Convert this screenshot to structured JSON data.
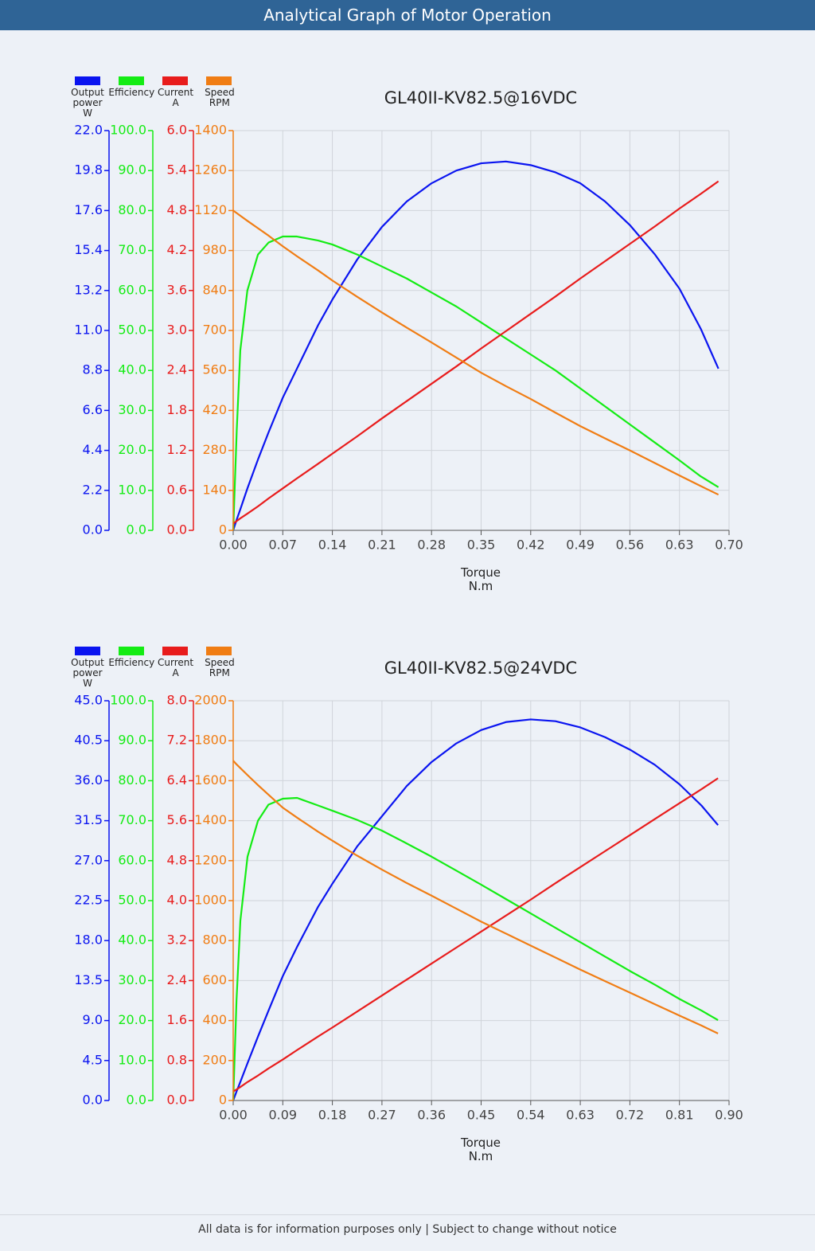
{
  "header": {
    "title": "Analytical Graph of Motor Operation"
  },
  "chart_data": [
    {
      "type": "line",
      "title": "GL40II-KV82.5@16VDC",
      "xlabel": "Torque\nN.m",
      "grid": true,
      "legend": "top-left",
      "x": [
        0,
        0.005,
        0.01,
        0.02,
        0.035,
        0.05,
        0.07,
        0.09,
        0.12,
        0.14,
        0.175,
        0.21,
        0.245,
        0.28,
        0.315,
        0.35,
        0.385,
        0.42,
        0.455,
        0.49,
        0.525,
        0.56,
        0.595,
        0.63,
        0.66,
        0.685
      ],
      "xlim": [
        0,
        0.7
      ],
      "xticks": [
        {
          "value": 0,
          "label": "0.00"
        },
        0.07,
        0.14,
        0.21,
        0.28,
        0.35,
        0.42,
        0.49,
        0.56,
        0.63,
        {
          "value": 0.7,
          "label": "0.70"
        }
      ],
      "series": [
        {
          "name": "Output\npower\nW",
          "color": "#0a14f0",
          "ylim": [
            0,
            22
          ],
          "yticks": [
            {
              "value": 0,
              "label": "0.0"
            },
            2.2,
            4.4,
            6.6,
            8.8,
            {
              "value": 11,
              "label": "11.0"
            },
            13.2,
            15.4,
            17.6,
            19.8,
            {
              "value": 22,
              "label": "22.0"
            }
          ],
          "values": [
            0,
            0.6,
            1.15,
            2.3,
            3.9,
            5.4,
            7.3,
            8.9,
            11.3,
            12.7,
            14.9,
            16.7,
            18.1,
            19.1,
            19.8,
            20.2,
            20.3,
            20.1,
            19.7,
            19.1,
            18.1,
            16.8,
            15.2,
            13.3,
            11.1,
            8.9
          ]
        },
        {
          "name": "Efficiency",
          "color": "#14ec14",
          "ylim": [
            0,
            100
          ],
          "yticks": [
            {
              "value": 0,
              "label": "0.0"
            },
            {
              "value": 10,
              "label": "10.0"
            },
            {
              "value": 20,
              "label": "20.0"
            },
            {
              "value": 30,
              "label": "30.0"
            },
            {
              "value": 40,
              "label": "40.0"
            },
            {
              "value": 50,
              "label": "50.0"
            },
            {
              "value": 60,
              "label": "60.0"
            },
            {
              "value": 70,
              "label": "70.0"
            },
            {
              "value": 80,
              "label": "80.0"
            },
            {
              "value": 90,
              "label": "90.0"
            },
            {
              "value": 100,
              "label": "100.0"
            }
          ],
          "values": [
            0,
            25,
            45,
            60,
            69,
            72,
            73.5,
            73.5,
            72.5,
            71.5,
            69,
            66,
            63,
            59.5,
            56,
            52,
            48,
            44,
            40,
            35.5,
            31,
            26.5,
            22,
            17.5,
            13.5,
            10.8
          ]
        },
        {
          "name": "Current\nA",
          "color": "#e81c1c",
          "ylim": [
            0,
            6
          ],
          "yticks": [
            {
              "value": 0,
              "label": "0.0"
            },
            0.6,
            1.2,
            1.8,
            2.4,
            {
              "value": 3,
              "label": "3.0"
            },
            3.6,
            4.2,
            4.8,
            5.4,
            {
              "value": 6,
              "label": "6.0"
            }
          ],
          "values": [
            0.1,
            0.14,
            0.18,
            0.25,
            0.36,
            0.48,
            0.63,
            0.78,
            1.0,
            1.15,
            1.41,
            1.68,
            1.94,
            2.2,
            2.46,
            2.73,
            2.99,
            3.25,
            3.51,
            3.78,
            4.04,
            4.3,
            4.56,
            4.83,
            5.05,
            5.24
          ]
        },
        {
          "name": "Speed\nRPM",
          "color": "#f07d14",
          "ylim": [
            0,
            1400
          ],
          "yticks": [
            0,
            140,
            280,
            420,
            560,
            700,
            840,
            980,
            1120,
            1260,
            1400
          ],
          "values": [
            1120,
            1111,
            1102,
            1084,
            1058,
            1032,
            995,
            960,
            910,
            875,
            818,
            763,
            710,
            658,
            605,
            552,
            505,
            460,
            412,
            365,
            322,
            280,
            236,
            192,
            155,
            125
          ]
        }
      ]
    },
    {
      "type": "line",
      "title": "GL40II-KV82.5@24VDC",
      "xlabel": "Torque\nN.m",
      "grid": true,
      "legend": "top-left",
      "x": [
        0,
        0.006,
        0.013,
        0.026,
        0.045,
        0.064,
        0.09,
        0.116,
        0.154,
        0.18,
        0.225,
        0.27,
        0.315,
        0.36,
        0.405,
        0.45,
        0.495,
        0.54,
        0.585,
        0.63,
        0.675,
        0.72,
        0.765,
        0.81,
        0.85,
        0.88
      ],
      "xlim": [
        0,
        0.9
      ],
      "xticks": [
        {
          "value": 0,
          "label": "0.00"
        },
        0.09,
        0.18,
        0.27,
        0.36,
        0.45,
        0.54,
        0.63,
        0.72,
        0.81,
        {
          "value": 0.9,
          "label": "0.90"
        }
      ],
      "series": [
        {
          "name": "Output\npower\nW",
          "color": "#0a14f0",
          "ylim": [
            0,
            45
          ],
          "yticks": [
            {
              "value": 0,
              "label": "0.0"
            },
            4.5,
            {
              "value": 9,
              "label": "9.0"
            },
            13.5,
            {
              "value": 18,
              "label": "18.0"
            },
            22.5,
            {
              "value": 27,
              "label": "27.0"
            },
            31.5,
            {
              "value": 36,
              "label": "36.0"
            },
            40.5,
            {
              "value": 45,
              "label": "45.0"
            }
          ],
          "values": [
            0,
            1.0,
            2.1,
            4.2,
            7.2,
            10.1,
            14.0,
            17.3,
            21.8,
            24.4,
            28.6,
            32.0,
            35.4,
            38.1,
            40.2,
            41.7,
            42.6,
            42.9,
            42.7,
            42.0,
            40.9,
            39.5,
            37.8,
            35.6,
            33.2,
            31.0
          ]
        },
        {
          "name": "Efficiency",
          "color": "#14ec14",
          "ylim": [
            0,
            100
          ],
          "yticks": [
            {
              "value": 0,
              "label": "0.0"
            },
            {
              "value": 10,
              "label": "10.0"
            },
            {
              "value": 20,
              "label": "20.0"
            },
            {
              "value": 30,
              "label": "30.0"
            },
            {
              "value": 40,
              "label": "40.0"
            },
            {
              "value": 50,
              "label": "50.0"
            },
            {
              "value": 60,
              "label": "60.0"
            },
            {
              "value": 70,
              "label": "70.0"
            },
            {
              "value": 80,
              "label": "80.0"
            },
            {
              "value": 90,
              "label": "90.0"
            },
            {
              "value": 100,
              "label": "100.0"
            }
          ],
          "values": [
            0,
            25,
            45,
            61,
            70,
            74,
            75.5,
            75.7,
            73.8,
            72.5,
            70.2,
            67.5,
            64.3,
            61,
            57.5,
            54,
            50.4,
            46.8,
            43.2,
            39.6,
            36,
            32.4,
            29,
            25.4,
            22.5,
            20.1
          ]
        },
        {
          "name": "Current\nA",
          "color": "#e81c1c",
          "ylim": [
            0,
            8
          ],
          "yticks": [
            {
              "value": 0,
              "label": "0.0"
            },
            0.8,
            1.6,
            2.4,
            3.2,
            {
              "value": 4,
              "label": "4.0"
            },
            4.8,
            5.6,
            6.4,
            7.2,
            {
              "value": 8,
              "label": "8.0"
            }
          ],
          "values": [
            0.18,
            0.22,
            0.27,
            0.37,
            0.5,
            0.64,
            0.82,
            1.01,
            1.28,
            1.46,
            1.78,
            2.1,
            2.42,
            2.74,
            3.06,
            3.38,
            3.7,
            4.02,
            4.35,
            4.67,
            4.99,
            5.31,
            5.63,
            5.95,
            6.23,
            6.45
          ]
        },
        {
          "name": "Speed\nRPM",
          "color": "#f07d14",
          "ylim": [
            0,
            2000
          ],
          "yticks": [
            0,
            200,
            400,
            600,
            800,
            1000,
            1200,
            1400,
            1600,
            1800,
            2000
          ],
          "values": [
            1700,
            1682,
            1663,
            1628,
            1578,
            1530,
            1465,
            1415,
            1345,
            1300,
            1225,
            1155,
            1088,
            1025,
            960,
            895,
            835,
            775,
            715,
            655,
            597,
            540,
            482,
            425,
            375,
            335
          ]
        }
      ]
    }
  ],
  "footer": {
    "text": "All data is for information purposes only | Subject to change without notice"
  }
}
